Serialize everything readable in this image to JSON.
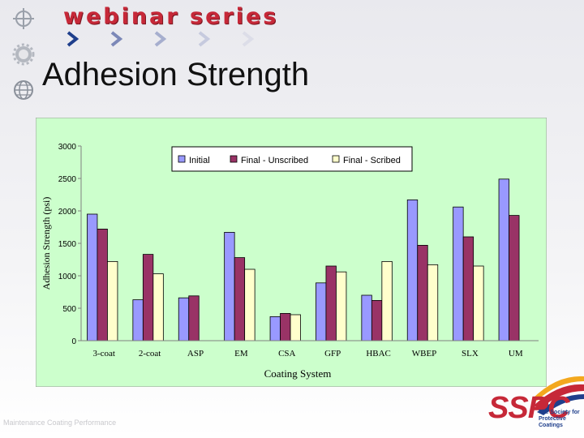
{
  "header": {
    "brand": "webinar series",
    "title": "Adhesion Strength"
  },
  "footer": {
    "note": "Maintenance Coating Performance",
    "logo_text": "SSPC",
    "logo_subtitle": "The Society for Protective Coatings"
  },
  "icons": [
    "crosshair-icon",
    "gear-icon",
    "globe-icon",
    "chevron-right-icon"
  ],
  "colors": {
    "brand_red": "#c62838",
    "plot_background": "#ccffcc",
    "initial": "#9999ff",
    "final_unscribed": "#993366",
    "final_scribed": "#ffffcc"
  },
  "chart_data": {
    "type": "bar",
    "title": "",
    "xlabel": "Coating System",
    "ylabel": "Adhesion Strength (psi)",
    "ylim": [
      0,
      3000
    ],
    "yticks": [
      0,
      500,
      1000,
      1500,
      2000,
      2500,
      3000
    ],
    "grid": false,
    "legend_position": "top",
    "categories": [
      "3-coat",
      "2-coat",
      "ASP",
      "EM",
      "CSA",
      "GFP",
      "HBAC",
      "WBEP",
      "SLX",
      "UM"
    ],
    "series": [
      {
        "name": "Initial",
        "color": "#9999ff",
        "values": [
          1950,
          630,
          660,
          1670,
          370,
          890,
          700,
          2170,
          2060,
          2490
        ]
      },
      {
        "name": "Final - Unscribed",
        "color": "#993366",
        "values": [
          1720,
          1330,
          690,
          1280,
          420,
          1150,
          620,
          1470,
          1600,
          1930
        ]
      },
      {
        "name": "Final - Scribed",
        "color": "#ffffcc",
        "values": [
          1220,
          1030,
          0,
          1100,
          400,
          1060,
          1220,
          1170,
          1150,
          0
        ]
      }
    ]
  }
}
